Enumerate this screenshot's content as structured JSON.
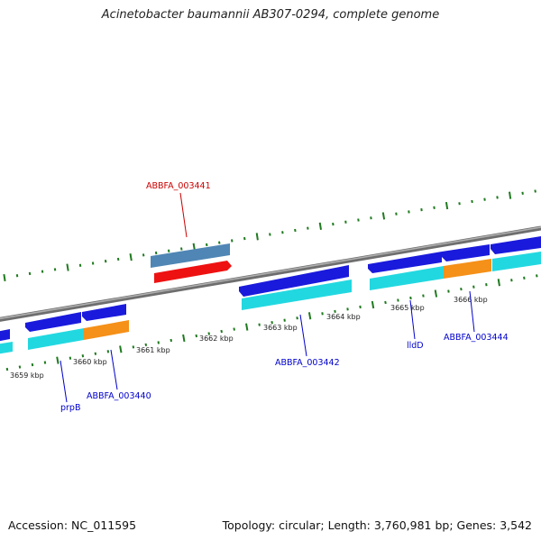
{
  "title": "Acinetobacter baumannii AB307-0294, complete genome",
  "footer": {
    "accession": "Accession: NC_011595",
    "summary": "Topology: circular; Length: 3,760,981 bp; Genes: 3,542"
  },
  "ticks": [
    "3659 kbp",
    "3660 kbp",
    "3661 kbp",
    "3662 kbp",
    "3663 kbp",
    "3664 kbp",
    "3665 kbp",
    "3666 kbp"
  ],
  "genes": [
    {
      "id": "prpB",
      "color": "#0000cc"
    },
    {
      "id": "ABBFA_003440",
      "color": "#0000cc"
    },
    {
      "id": "ABBFA_003441",
      "color": "#cc0000"
    },
    {
      "id": "ABBFA_003442",
      "color": "#0000cc"
    },
    {
      "id": "lldD",
      "color": "#0000cc"
    },
    {
      "id": "ABBFA_003444",
      "color": "#0000cc"
    }
  ],
  "colors": {
    "backbone": "#8a8a8a",
    "cds_reverse": "#1a1adc",
    "cds_forward": "#ee1111",
    "gene_reverse": "#22d8e0",
    "gene_forward": "#4f86b5",
    "feature_other": "#f59018",
    "ticks": "#1f7a1f"
  }
}
